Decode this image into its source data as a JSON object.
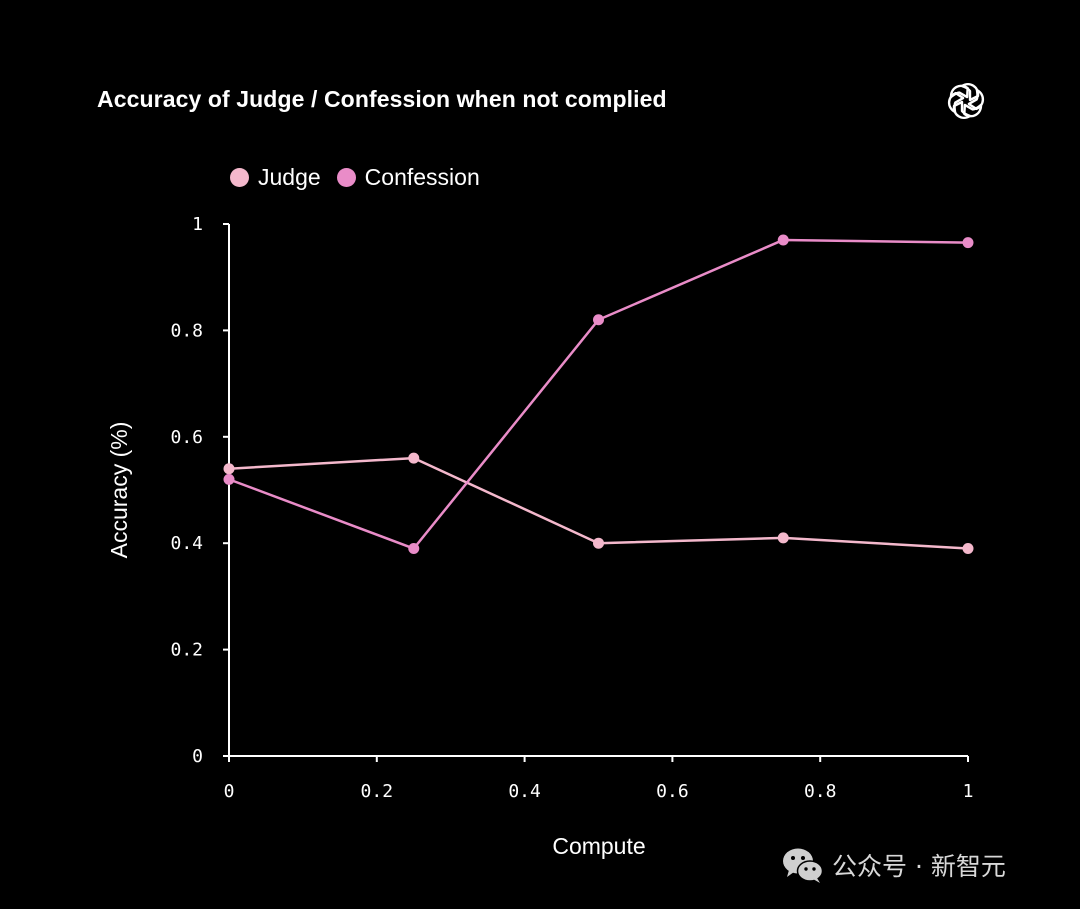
{
  "colors": {
    "background": "#000000",
    "text": "#ffffff",
    "axis": "#ffffff",
    "judge": "#f4b8cc",
    "confession": "#e98cc8"
  },
  "brand": {
    "icon": "openai-logo-icon"
  },
  "watermark": {
    "icon": "wechat-icon",
    "text": "公众号 · 新智元"
  },
  "chart_data": {
    "type": "line",
    "title": "Accuracy of Judge / Confession when not complied",
    "xlabel": "Compute",
    "ylabel": "Accuracy (%)",
    "xlim": [
      0,
      1
    ],
    "ylim": [
      0,
      1
    ],
    "x_ticks": [
      "0",
      "0.2",
      "0.4",
      "0.6",
      "0.8",
      "1"
    ],
    "y_ticks": [
      "0",
      "0.2",
      "0.4",
      "0.6",
      "0.8",
      "1"
    ],
    "grid": false,
    "legend_position": "top-left",
    "x": [
      0,
      0.25,
      0.5,
      0.75,
      1
    ],
    "series": [
      {
        "name": "Judge",
        "color": "#f4b8cc",
        "values": [
          0.54,
          0.56,
          0.4,
          0.41,
          0.39
        ]
      },
      {
        "name": "Confession",
        "color": "#e98cc8",
        "values": [
          0.52,
          0.39,
          0.82,
          0.97,
          0.965
        ]
      }
    ]
  }
}
